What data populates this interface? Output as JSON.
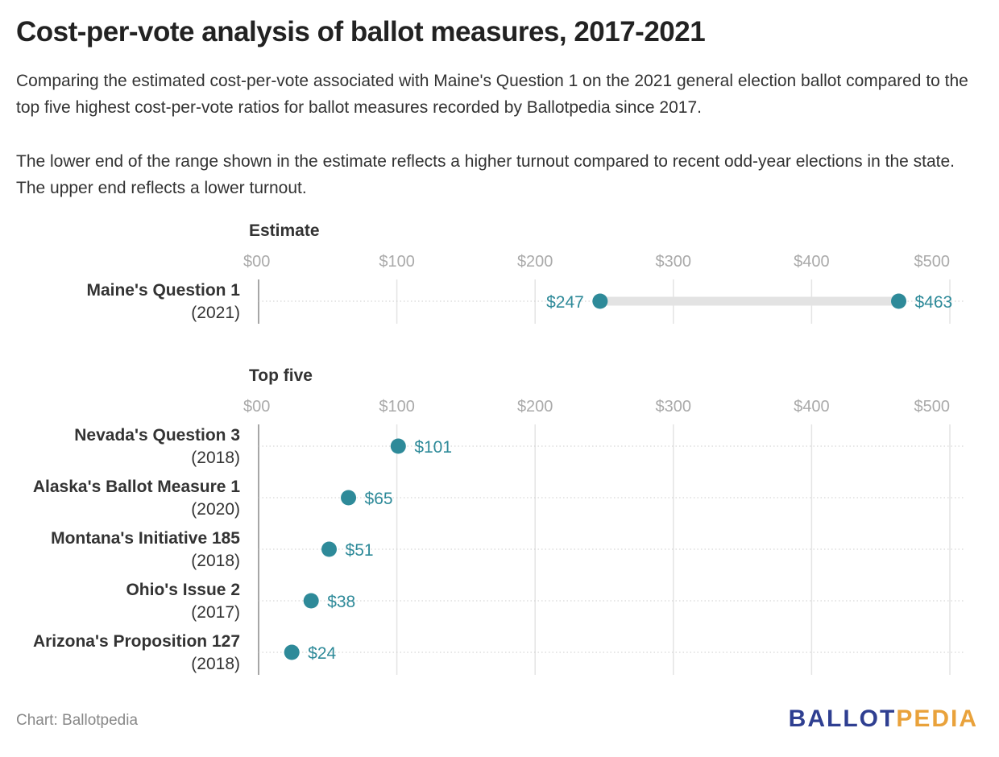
{
  "title": "Cost-per-vote analysis of ballot measures, 2017-2021",
  "description": [
    "Comparing the estimated cost-per-vote associated with Maine's Question 1 on the 2021 general election ballot compared to the top five highest cost-per-vote ratios for ballot measures recorded by Ballotpedia since 2017.",
    "The lower end of the range shown in the estimate reflects a higher turnout compared to recent odd-year elections in the state. The upper end reflects a lower turnout."
  ],
  "chart_data": [
    {
      "type": "range-dot",
      "panel_title": "Estimate",
      "xlim": [
        0,
        500
      ],
      "ticks": [
        0,
        100,
        200,
        300,
        400,
        500
      ],
      "tick_labels": [
        "$00",
        "$100",
        "$200",
        "$300",
        "$400",
        "$500"
      ],
      "rows": [
        {
          "name": "Maine's Question 1",
          "year": "(2021)",
          "low": 247,
          "high": 463,
          "low_label": "$247",
          "high_label": "$463"
        }
      ]
    },
    {
      "type": "dot",
      "panel_title": "Top five",
      "xlim": [
        0,
        500
      ],
      "ticks": [
        0,
        100,
        200,
        300,
        400,
        500
      ],
      "tick_labels": [
        "$00",
        "$100",
        "$200",
        "$300",
        "$400",
        "$500"
      ],
      "rows": [
        {
          "name": "Nevada's Question 3",
          "year": "(2018)",
          "value": 101,
          "label": "$101"
        },
        {
          "name": "Alaska's Ballot Measure 1",
          "year": "(2020)",
          "value": 65,
          "label": "$65"
        },
        {
          "name": "Montana's Initiative 185",
          "year": "(2018)",
          "value": 51,
          "label": "$51"
        },
        {
          "name": "Ohio's Issue 2",
          "year": "(2017)",
          "value": 38,
          "label": "$38"
        },
        {
          "name": "Arizona's Proposition 127",
          "year": "(2018)",
          "value": 24,
          "label": "$24"
        }
      ]
    }
  ],
  "colors": {
    "dot": "#2e8a99",
    "range_bar": "#e3e3e3",
    "grid": "#e4e4e4",
    "axis_label": "#aaaaaa"
  },
  "footer": {
    "source": "Chart: Ballotpedia",
    "logo_part1": "BALLOT",
    "logo_part2": "PEDIA"
  }
}
